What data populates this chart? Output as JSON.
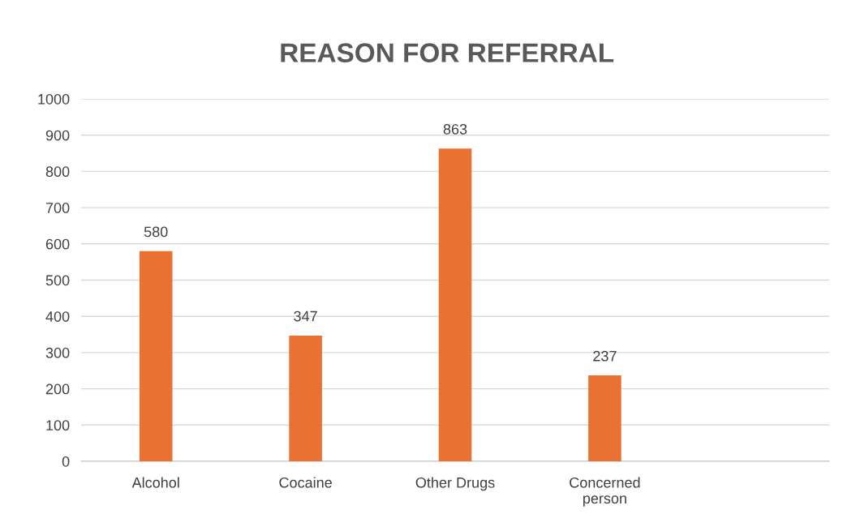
{
  "chart_data": {
    "type": "bar",
    "title": "REASON FOR REFERRAL",
    "categories": [
      "Alcohol",
      "Cocaine",
      "Other Drugs",
      "Concerned\nperson",
      null
    ],
    "values": [
      580,
      347,
      863,
      237,
      null
    ],
    "color": "#e97132",
    "ylim": [
      0,
      1000
    ],
    "yticks": [
      0,
      100,
      200,
      300,
      400,
      500,
      600,
      700,
      800,
      900,
      1000
    ],
    "grid": "y",
    "data_labels": true
  }
}
